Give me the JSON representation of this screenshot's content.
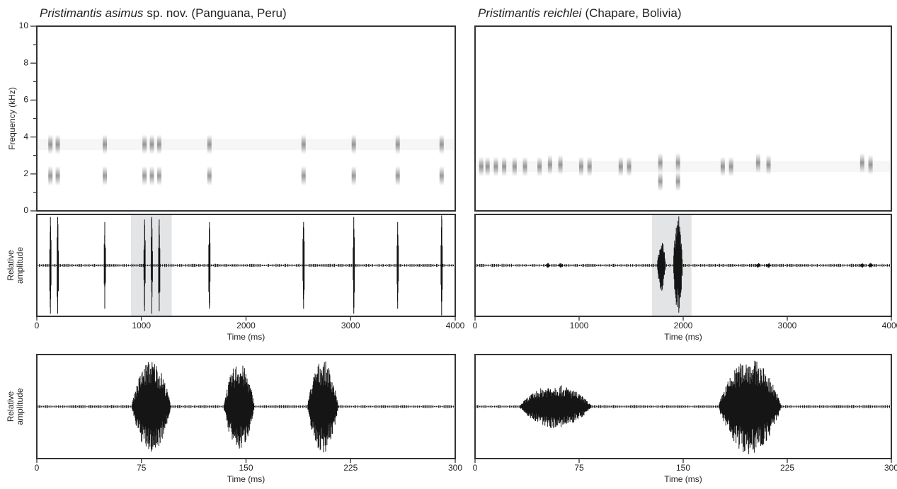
{
  "chart_data": [
    {
      "type": "spectrogram",
      "title_species": "Pristimantis asimus",
      "title_note": "sp. nov. (Panguana, Peru)",
      "y_label": "Frequency (kHz)",
      "xlim": [
        0,
        4000
      ],
      "ylim": [
        0,
        10
      ],
      "yticks": [
        0,
        2,
        4,
        6,
        8,
        10
      ],
      "yminor": [
        1,
        3,
        5,
        7,
        9
      ],
      "x": [
        130,
        130,
        200,
        200,
        650,
        650,
        1030,
        1030,
        1100,
        1100,
        1170,
        1170,
        1650,
        1650,
        2550,
        2550,
        3030,
        3030,
        3450,
        3450,
        3870,
        3870
      ],
      "values": [
        3.6,
        1.9,
        3.6,
        1.9,
        3.6,
        1.9,
        3.6,
        1.9,
        3.6,
        1.9,
        3.6,
        1.9,
        3.6,
        1.9,
        3.6,
        1.9,
        3.6,
        1.9,
        3.6,
        1.9,
        3.6,
        1.9
      ]
    },
    {
      "type": "oscillogram",
      "y_label": [
        "Relative",
        "amplitude"
      ],
      "x_label": "Time (ms)",
      "xlim": [
        0,
        4000
      ],
      "ylim": [
        -1,
        1
      ],
      "xticks": [
        0,
        1000,
        2000,
        3000,
        4000
      ],
      "highlight": [
        900,
        1290
      ],
      "x": [
        130,
        200,
        650,
        1030,
        1100,
        1170,
        1650,
        2550,
        3030,
        3450,
        3870
      ],
      "values": [
        0.95,
        0.95,
        0.85,
        0.9,
        0.95,
        0.9,
        0.85,
        0.85,
        0.95,
        0.85,
        0.98
      ],
      "widths": [
        20,
        20,
        20,
        20,
        20,
        20,
        20,
        20,
        20,
        20,
        20
      ]
    },
    {
      "type": "oscillogram",
      "y_label": [
        "Relative",
        "amplitude"
      ],
      "x_label": "Time (ms)",
      "xlim": [
        0,
        300
      ],
      "ylim": [
        -1,
        1
      ],
      "xticks": [
        0,
        75,
        150,
        225,
        300
      ],
      "x": [
        82,
        145,
        205
      ],
      "values": [
        0.9,
        0.85,
        0.9
      ],
      "widths": [
        28,
        22,
        22
      ]
    },
    {
      "type": "spectrogram",
      "title_species": "Pristimantis reichlei",
      "title_note": "(Chapare, Bolivia)",
      "xlim": [
        0,
        4000
      ],
      "ylim": [
        0,
        10
      ],
      "x": [
        60,
        120,
        200,
        280,
        380,
        480,
        620,
        720,
        820,
        1020,
        1100,
        1400,
        1480,
        1780,
        1780,
        1950,
        1950,
        2380,
        2460,
        2720,
        2820,
        3720,
        3800
      ],
      "values": [
        2.4,
        2.4,
        2.4,
        2.4,
        2.4,
        2.4,
        2.4,
        2.5,
        2.5,
        2.4,
        2.4,
        2.4,
        2.4,
        2.6,
        1.6,
        2.6,
        1.6,
        2.4,
        2.4,
        2.6,
        2.5,
        2.6,
        2.5
      ]
    },
    {
      "type": "oscillogram",
      "x_label": "Time (ms)",
      "xlim": [
        0,
        4000
      ],
      "ylim": [
        -1,
        1
      ],
      "xticks": [
        0,
        1000,
        2000,
        3000,
        4000
      ],
      "highlight": [
        1700,
        2080
      ],
      "x": [
        700,
        820,
        1790,
        1950,
        2720,
        2820,
        3720,
        3800
      ],
      "values": [
        0.05,
        0.05,
        0.55,
        1.0,
        0.05,
        0.05,
        0.05,
        0.05
      ],
      "widths": [
        40,
        40,
        80,
        90,
        40,
        40,
        40,
        40
      ]
    },
    {
      "type": "oscillogram",
      "x_label": "Time (ms)",
      "xlim": [
        0,
        300
      ],
      "ylim": [
        -1,
        1
      ],
      "xticks": [
        0,
        75,
        150,
        225,
        300
      ],
      "x": [
        58,
        198
      ],
      "values": [
        0.42,
        0.92
      ],
      "widths": [
        52,
        45
      ]
    }
  ]
}
